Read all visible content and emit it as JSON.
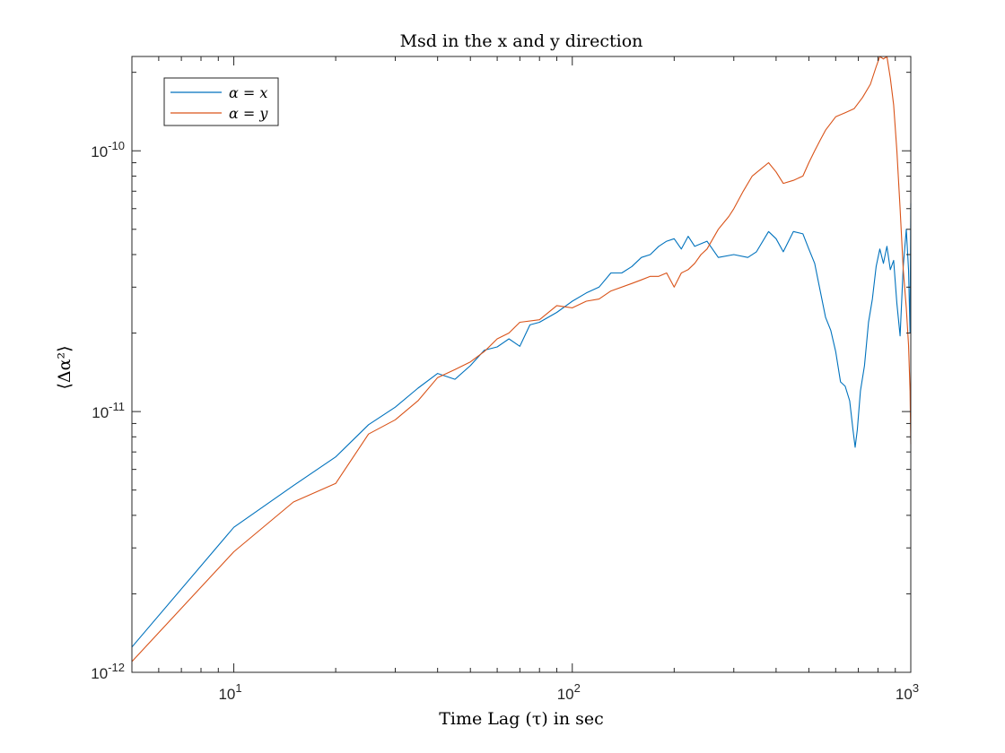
{
  "chart_data": {
    "type": "line",
    "title": "Msd in the x and y direction",
    "xlabel": "Time Lag (τ) in sec",
    "ylabel": "⟨Δα²⟩",
    "xscale": "log",
    "yscale": "log",
    "xlim": [
      5,
      1000
    ],
    "ylim": [
      1e-12,
      2.3e-10
    ],
    "grid": false,
    "legend_position": "top-left",
    "x_ticks": [
      {
        "value": 10,
        "base": "10",
        "exp": "1"
      },
      {
        "value": 100,
        "base": "10",
        "exp": "2"
      },
      {
        "value": 1000,
        "base": "10",
        "exp": "3"
      }
    ],
    "y_ticks": [
      {
        "value": 1e-12,
        "base": "10",
        "exp": "-12"
      },
      {
        "value": 1e-11,
        "base": "10",
        "exp": "-11"
      },
      {
        "value": 1e-10,
        "base": "10",
        "exp": "-10"
      }
    ],
    "series": [
      {
        "name": "α = x",
        "color": "#0072BD",
        "points": [
          [
            5,
            1.25e-12
          ],
          [
            10,
            3.6e-12
          ],
          [
            15,
            5.2e-12
          ],
          [
            20,
            6.7e-12
          ],
          [
            25,
            8.9e-12
          ],
          [
            30,
            1.04e-11
          ],
          [
            35,
            1.23e-11
          ],
          [
            40,
            1.4e-11
          ],
          [
            45,
            1.33e-11
          ],
          [
            50,
            1.5e-11
          ],
          [
            55,
            1.72e-11
          ],
          [
            60,
            1.77e-11
          ],
          [
            65,
            1.9e-11
          ],
          [
            70,
            1.78e-11
          ],
          [
            75,
            2.15e-11
          ],
          [
            80,
            2.2e-11
          ],
          [
            90,
            2.4e-11
          ],
          [
            100,
            2.65e-11
          ],
          [
            110,
            2.85e-11
          ],
          [
            120,
            3e-11
          ],
          [
            130,
            3.4e-11
          ],
          [
            140,
            3.4e-11
          ],
          [
            150,
            3.6e-11
          ],
          [
            160,
            3.9e-11
          ],
          [
            170,
            4e-11
          ],
          [
            180,
            4.3e-11
          ],
          [
            190,
            4.5e-11
          ],
          [
            200,
            4.6e-11
          ],
          [
            210,
            4.2e-11
          ],
          [
            220,
            4.7e-11
          ],
          [
            230,
            4.3e-11
          ],
          [
            250,
            4.5e-11
          ],
          [
            270,
            3.9e-11
          ],
          [
            300,
            4e-11
          ],
          [
            330,
            3.9e-11
          ],
          [
            350,
            4.1e-11
          ],
          [
            380,
            4.9e-11
          ],
          [
            400,
            4.6e-11
          ],
          [
            420,
            4.1e-11
          ],
          [
            450,
            4.9e-11
          ],
          [
            480,
            4.8e-11
          ],
          [
            500,
            4.2e-11
          ],
          [
            520,
            3.7e-11
          ],
          [
            540,
            2.9e-11
          ],
          [
            560,
            2.3e-11
          ],
          [
            580,
            2.05e-11
          ],
          [
            600,
            1.7e-11
          ],
          [
            620,
            1.3e-11
          ],
          [
            640,
            1.25e-11
          ],
          [
            660,
            1.1e-11
          ],
          [
            675,
            8.5e-12
          ],
          [
            685,
            7.3e-12
          ],
          [
            695,
            8.5e-12
          ],
          [
            710,
            1.2e-11
          ],
          [
            730,
            1.5e-11
          ],
          [
            750,
            2.2e-11
          ],
          [
            770,
            2.7e-11
          ],
          [
            790,
            3.6e-11
          ],
          [
            810,
            4.2e-11
          ],
          [
            830,
            3.7e-11
          ],
          [
            850,
            4.3e-11
          ],
          [
            870,
            3.5e-11
          ],
          [
            890,
            3.8e-11
          ],
          [
            910,
            2.6e-11
          ],
          [
            930,
            1.95e-11
          ],
          [
            950,
            3.6e-11
          ],
          [
            970,
            5e-11
          ],
          [
            985,
            3.5e-11
          ],
          [
            995,
            2e-11
          ],
          [
            1000,
            6.3e-11
          ]
        ]
      },
      {
        "name": "α = y",
        "color": "#D95319",
        "points": [
          [
            5,
            1.1e-12
          ],
          [
            10,
            2.9e-12
          ],
          [
            15,
            4.5e-12
          ],
          [
            20,
            5.3e-12
          ],
          [
            25,
            8.2e-12
          ],
          [
            30,
            9.3e-12
          ],
          [
            35,
            1.1e-11
          ],
          [
            40,
            1.35e-11
          ],
          [
            45,
            1.45e-11
          ],
          [
            50,
            1.55e-11
          ],
          [
            55,
            1.7e-11
          ],
          [
            60,
            1.9e-11
          ],
          [
            65,
            2e-11
          ],
          [
            70,
            2.2e-11
          ],
          [
            80,
            2.25e-11
          ],
          [
            90,
            2.55e-11
          ],
          [
            100,
            2.5e-11
          ],
          [
            110,
            2.65e-11
          ],
          [
            120,
            2.7e-11
          ],
          [
            130,
            2.9e-11
          ],
          [
            150,
            3.1e-11
          ],
          [
            160,
            3.2e-11
          ],
          [
            170,
            3.3e-11
          ],
          [
            180,
            3.3e-11
          ],
          [
            190,
            3.4e-11
          ],
          [
            200,
            3e-11
          ],
          [
            210,
            3.4e-11
          ],
          [
            220,
            3.5e-11
          ],
          [
            230,
            3.7e-11
          ],
          [
            240,
            4e-11
          ],
          [
            250,
            4.2e-11
          ],
          [
            270,
            5e-11
          ],
          [
            290,
            5.6e-11
          ],
          [
            300,
            6e-11
          ],
          [
            320,
            7e-11
          ],
          [
            340,
            8e-11
          ],
          [
            360,
            8.5e-11
          ],
          [
            380,
            9e-11
          ],
          [
            400,
            8.3e-11
          ],
          [
            420,
            7.5e-11
          ],
          [
            450,
            7.7e-11
          ],
          [
            480,
            8e-11
          ],
          [
            500,
            9e-11
          ],
          [
            520,
            1e-10
          ],
          [
            540,
            1.1e-10
          ],
          [
            560,
            1.2e-10
          ],
          [
            600,
            1.35e-10
          ],
          [
            640,
            1.4e-10
          ],
          [
            680,
            1.45e-10
          ],
          [
            720,
            1.6e-10
          ],
          [
            760,
            1.8e-10
          ],
          [
            790,
            2.1e-10
          ],
          [
            810,
            2.3e-10
          ],
          [
            830,
            2.25e-10
          ],
          [
            850,
            2.3e-10
          ],
          [
            870,
            1.9e-10
          ],
          [
            890,
            1.5e-10
          ],
          [
            910,
            1e-10
          ],
          [
            930,
            6e-11
          ],
          [
            950,
            3.5e-11
          ],
          [
            970,
            2.5e-11
          ],
          [
            985,
            1.8e-11
          ],
          [
            995,
            1.2e-11
          ],
          [
            1000,
            7.5e-12
          ]
        ]
      }
    ]
  }
}
